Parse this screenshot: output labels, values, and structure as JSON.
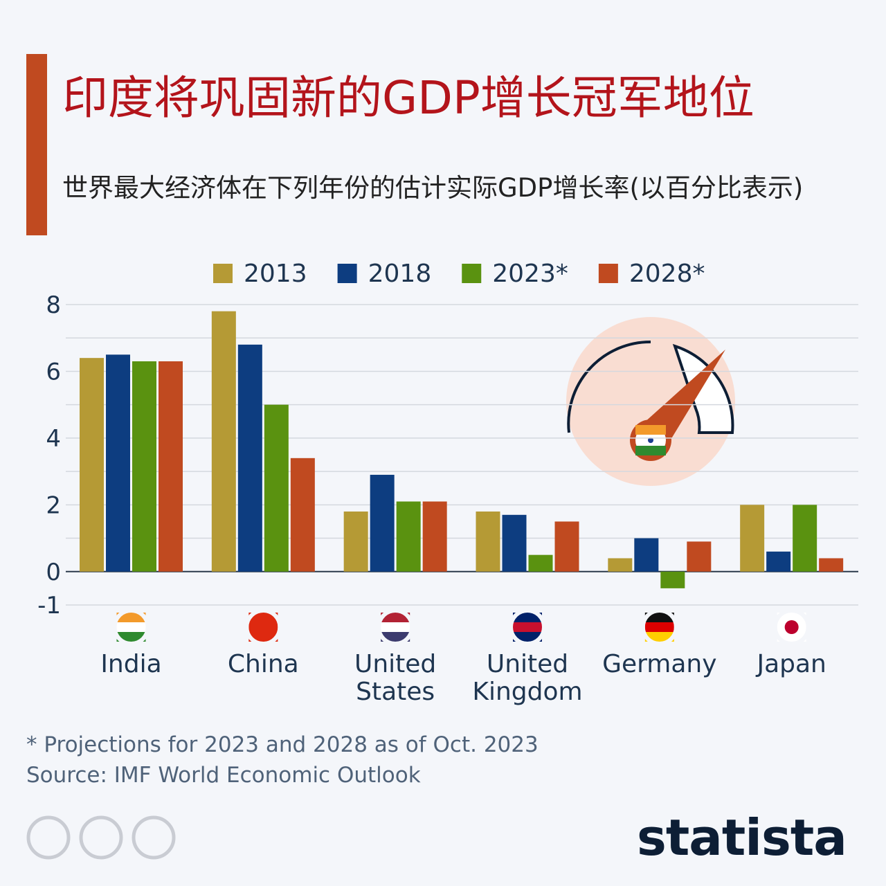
{
  "chart_data": {
    "type": "bar",
    "title": "印度将巩固新的GDP增长冠军地位",
    "subtitle": "世界最大经济体在下列年份的估计实际GDP增长率(以百分比表示)",
    "categories": [
      "India",
      "China",
      "United States",
      "United Kingdom",
      "Germany",
      "Japan"
    ],
    "series": [
      {
        "name": "2013",
        "color": "#b59a35",
        "values": [
          6.4,
          7.8,
          1.8,
          1.8,
          0.4,
          2.0
        ]
      },
      {
        "name": "2018",
        "color": "#0d3d80",
        "values": [
          6.5,
          6.8,
          2.9,
          1.7,
          1.0,
          0.6
        ]
      },
      {
        "name": "2023*",
        "color": "#5a9210",
        "values": [
          6.3,
          5.0,
          2.1,
          0.5,
          -0.5,
          2.0
        ]
      },
      {
        "name": "2028*",
        "color": "#c04a20",
        "values": [
          6.3,
          3.4,
          2.1,
          1.5,
          0.9,
          0.4
        ]
      }
    ],
    "ylim": [
      -1,
      8
    ],
    "yticks": [
      -1,
      0,
      2,
      4,
      6,
      8
    ],
    "grid": true,
    "minor_grid": true,
    "legend": "top",
    "footnote": "* Projections for 2023 and 2028 as of Oct. 2023",
    "source": "Source: IMF World Economic Outlook",
    "brand": "statista"
  }
}
